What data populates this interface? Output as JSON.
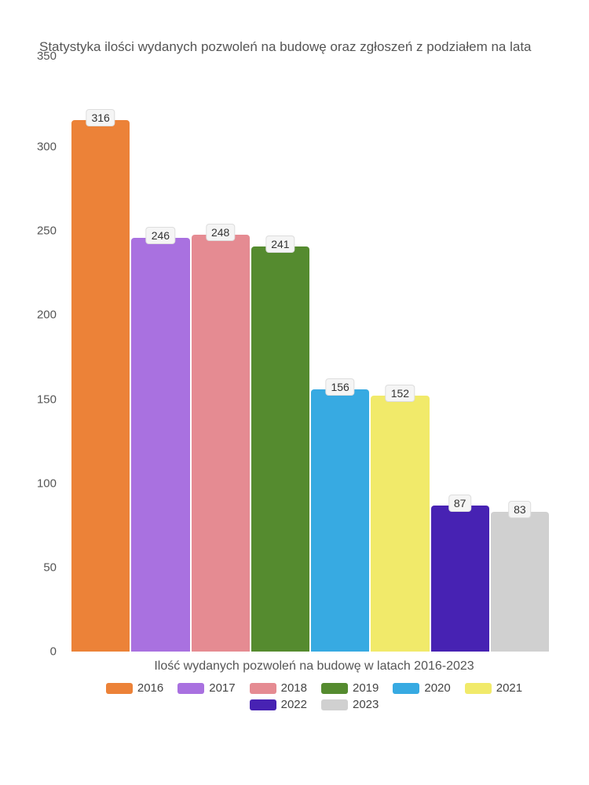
{
  "chart": {
    "type": "bar",
    "title": "Statystyka ilości wydanych pozwoleń na budowę oraz zgłoszeń z podziałem na lata",
    "title_fontsize": 17,
    "title_color": "#555555",
    "x_label": "Ilość wydanych pozwoleń na budowę w latach 2016-2023",
    "x_label_fontsize": 16,
    "background_color": "#ffffff",
    "ylim": [
      0,
      350
    ],
    "ytick_step": 50,
    "yticks": [
      {
        "value": 0,
        "label": "0"
      },
      {
        "value": 50,
        "label": "50"
      },
      {
        "value": 100,
        "label": "100"
      },
      {
        "value": 150,
        "label": "150"
      },
      {
        "value": 200,
        "label": "200"
      },
      {
        "value": 250,
        "label": "250"
      },
      {
        "value": 300,
        "label": "300"
      },
      {
        "value": 350,
        "label": "350"
      }
    ],
    "bar_border_radius": 4,
    "bars": [
      {
        "category": "2016",
        "value": 316,
        "color": "#ec8238"
      },
      {
        "category": "2017",
        "value": 246,
        "color": "#a971e0"
      },
      {
        "category": "2018",
        "value": 248,
        "color": "#e58b92"
      },
      {
        "category": "2019",
        "value": 241,
        "color": "#558b2f"
      },
      {
        "category": "2020",
        "value": 156,
        "color": "#37aae2"
      },
      {
        "category": "2021",
        "value": 152,
        "color": "#f1ea6a"
      },
      {
        "category": "2022",
        "value": 87,
        "color": "#4722b3"
      },
      {
        "category": "2023",
        "value": 83,
        "color": "#d0d0d0"
      }
    ],
    "value_label": {
      "fontsize": 14,
      "background": "#f5f5f5",
      "border_color": "#dddddd",
      "text_color": "#333333"
    },
    "legend": {
      "position": "bottom",
      "fontsize": 15,
      "swatch_width": 34,
      "swatch_height": 14
    }
  }
}
